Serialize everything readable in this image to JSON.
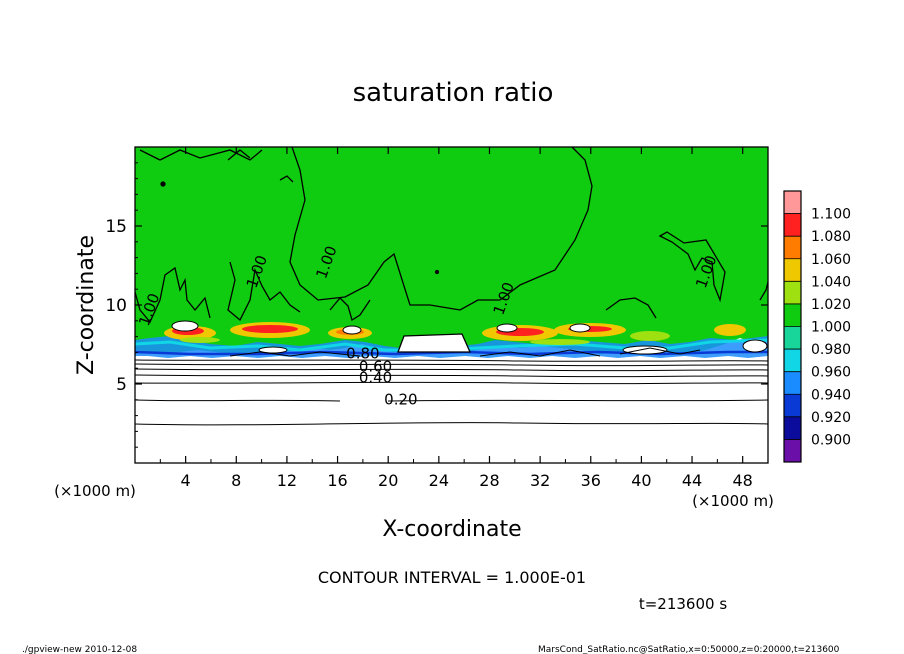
{
  "chart_data": {
    "type": "heatmap",
    "title": "saturation ratio",
    "xlabel": "X-coordinate",
    "ylabel": "Z-coordinate",
    "x_unit": "(×1000 m)",
    "z_unit": "(×1000 m)",
    "xlim": [
      0,
      50
    ],
    "ylim": [
      0,
      20
    ],
    "x_ticks": [
      4,
      8,
      12,
      16,
      20,
      24,
      28,
      32,
      36,
      40,
      44,
      48
    ],
    "y_ticks": [
      5,
      10,
      15
    ],
    "contour_interval_text": "CONTOUR INTERVAL = 1.000E-01",
    "time_text": "t=213600 s",
    "colorbar": {
      "levels": [
        0.9,
        0.92,
        0.94,
        0.96,
        0.98,
        1.0,
        1.02,
        1.04,
        1.06,
        1.08,
        1.1
      ],
      "labels": [
        "0.900",
        "0.920",
        "0.940",
        "0.960",
        "0.980",
        "1.000",
        "1.020",
        "1.040",
        "1.060",
        "1.080",
        "1.100"
      ],
      "colors": [
        "#6a0fa8",
        "#0c0c9c",
        "#0a3ad6",
        "#1a8cff",
        "#10d6e6",
        "#18d69a",
        "#10cc10",
        "#9ee010",
        "#f0c800",
        "#ff7c00",
        "#ff2020",
        "#ff9898"
      ]
    },
    "contour_labels": [
      {
        "text": "0.20",
        "x": 21.0,
        "z": 3.7
      },
      {
        "text": "0.40",
        "x": 19.0,
        "z": 5.1
      },
      {
        "text": "0.60",
        "x": 19.0,
        "z": 5.8
      },
      {
        "text": "0.80",
        "x": 18.0,
        "z": 6.6
      },
      {
        "text": "1.00",
        "x": 1.5,
        "z": 9.6
      },
      {
        "text": "1.00",
        "x": 10.0,
        "z": 12.0
      },
      {
        "text": "1.00",
        "x": 15.5,
        "z": 12.6
      },
      {
        "text": "1.00",
        "x": 29.5,
        "z": 10.3
      },
      {
        "text": "1.00",
        "x": 45.5,
        "z": 12.0
      }
    ],
    "grid": false,
    "legend": "colorbar right"
  },
  "footer": {
    "left": "./gpview-new   2010-12-08",
    "right": "MarsCond_SatRatio.nc@SatRatio,x=0:50000,z=0:20000,t=213600"
  }
}
